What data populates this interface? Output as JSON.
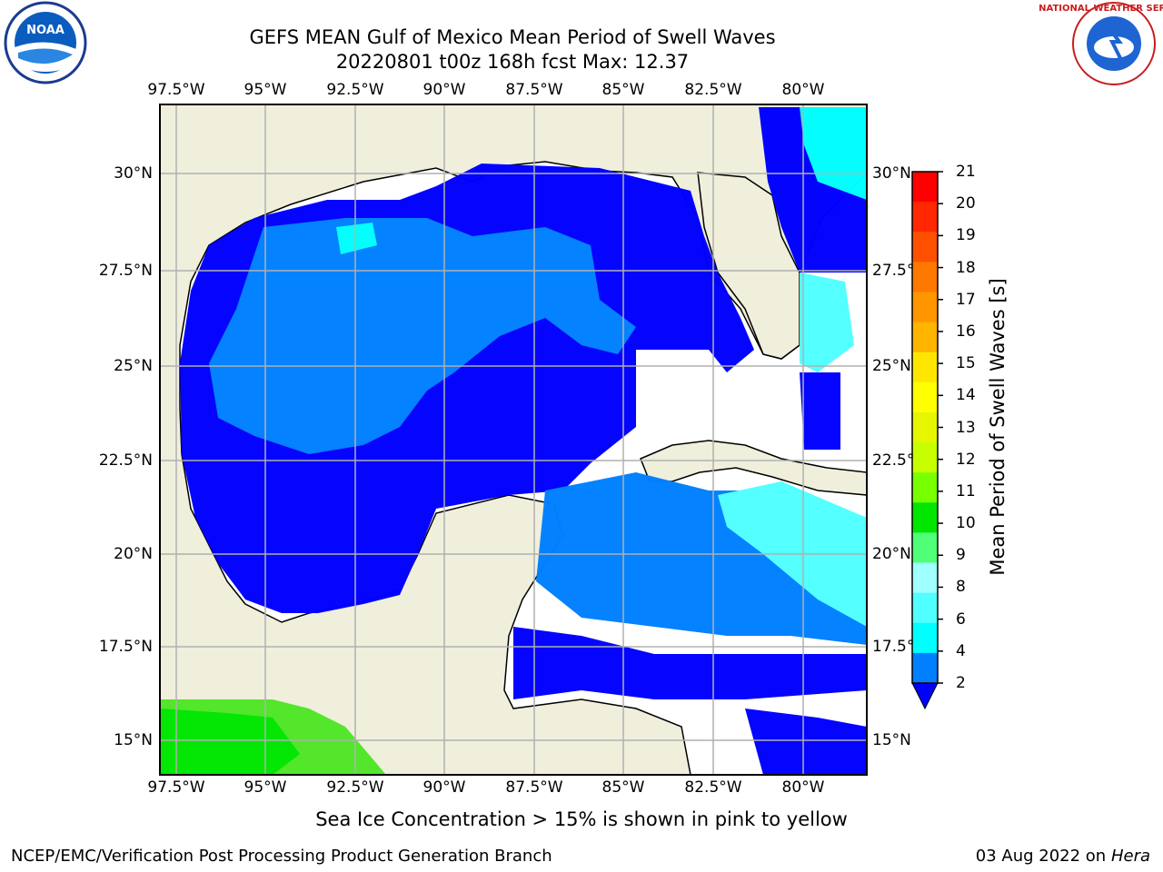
{
  "header": {
    "title_line1": "GEFS MEAN Gulf of Mexico Mean Period of Swell Waves",
    "title_line2": "20220801 t00z 168h fcst   Max: 12.37"
  },
  "logos": {
    "left": "NOAA",
    "right": "NATIONAL WEATHER SERVICE"
  },
  "map": {
    "lon_labels": [
      "97.5°W",
      "95°W",
      "92.5°W",
      "90°W",
      "87.5°W",
      "85°W",
      "82.5°W",
      "80°W"
    ],
    "lat_labels_left": [
      "30°N",
      "27.5°N",
      "25°N",
      "22.5°N",
      "20°N",
      "17.5°N",
      "15°N"
    ],
    "lat_labels_right": [
      "30°N",
      "27.5°N",
      "25°N",
      "22.5°N",
      "20°N",
      "17.5°N",
      "15°N"
    ]
  },
  "colorbar": {
    "title": "Mean Period of Swell Waves [s]",
    "ticks": [
      "21",
      "20",
      "19",
      "18",
      "17",
      "16",
      "15",
      "14",
      "13",
      "12",
      "11",
      "10",
      "9",
      "8",
      "6",
      "4",
      "2"
    ],
    "colors": [
      "#ff0000",
      "#ff2800",
      "#ff5000",
      "#ff7800",
      "#ff9600",
      "#ffb400",
      "#ffe600",
      "#ffff00",
      "#e6f500",
      "#c8ff00",
      "#78ff00",
      "#00e600",
      "#50ff78",
      "#a0ffff",
      "#50ffff",
      "#00ffff",
      "#0080ff",
      "#0000ff"
    ]
  },
  "footer": {
    "note": "Sea Ice Concentration > 15% is shown in pink to yellow",
    "left": "NCEP/EMC/Verification Post Processing Product Generation Branch",
    "right_date": "03 Aug 2022 on",
    "right_host": "Hera"
  }
}
